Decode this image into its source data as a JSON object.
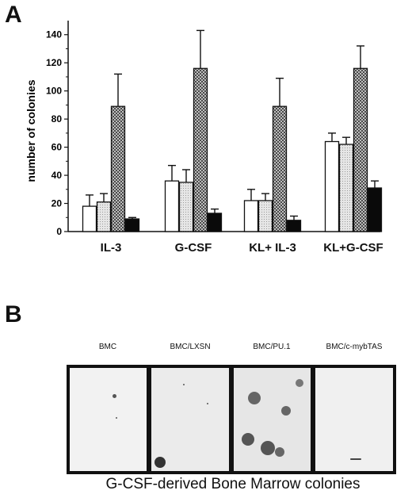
{
  "panels": {
    "a_letter": "A",
    "b_letter": "B"
  },
  "chart_data": {
    "type": "bar",
    "title": "",
    "xlabel": "",
    "ylabel": "number of colonies",
    "ylim": [
      0,
      150
    ],
    "yticks": [
      0,
      20,
      40,
      60,
      80,
      100,
      120,
      140
    ],
    "categories": [
      "IL-3",
      "G-CSF",
      "KL+ IL-3",
      "KL+G-CSF"
    ],
    "series": [
      {
        "fill": "white",
        "values": [
          18,
          36,
          22,
          64
        ],
        "errors": [
          8,
          11,
          8,
          6
        ]
      },
      {
        "fill": "light",
        "values": [
          21,
          35,
          22,
          62
        ],
        "errors": [
          6,
          9,
          5,
          5
        ]
      },
      {
        "fill": "dotted",
        "values": [
          89,
          116,
          89,
          116
        ],
        "errors": [
          23,
          27,
          20,
          16
        ]
      },
      {
        "fill": "black",
        "values": [
          9,
          13,
          8,
          31
        ],
        "errors": [
          1,
          3,
          3,
          5
        ]
      }
    ],
    "grid": false,
    "legend": "none",
    "colors": {
      "white": "#ffffff",
      "light": "#d9d9d9",
      "dotted": "#8a8a8a",
      "black": "#0a0a0a"
    }
  },
  "panel_b": {
    "column_labels": [
      "BMC",
      "BMC/LXSN",
      "BMC/PU.1",
      "BMC/c-mybTAS"
    ],
    "caption": "G-CSF-derived Bone Marrow colonies"
  }
}
